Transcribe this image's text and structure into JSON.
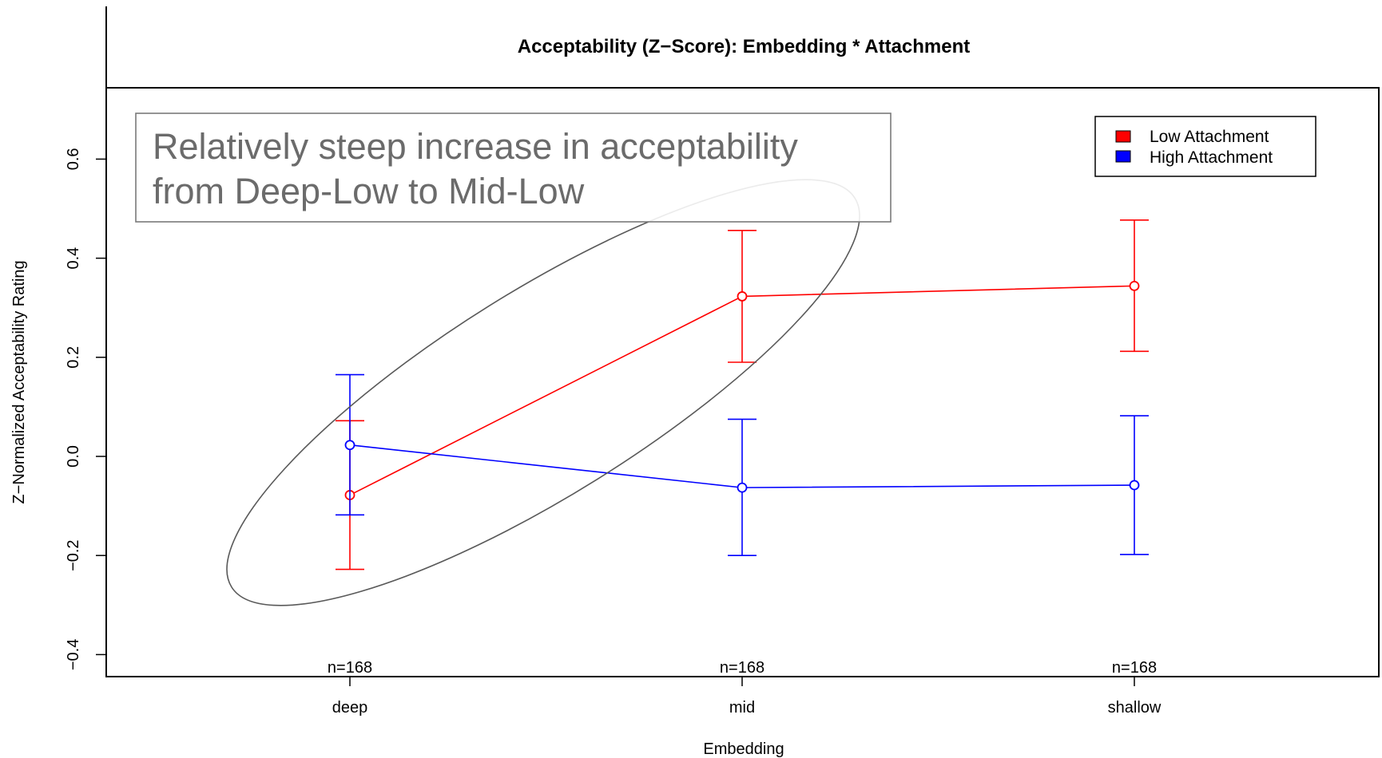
{
  "chart_data": {
    "type": "line",
    "title": "Acceptability (Z−Score): Embedding * Attachment",
    "xlabel": "Embedding",
    "ylabel": "Z−Normalized Acceptability Rating",
    "categories": [
      "deep",
      "mid",
      "shallow"
    ],
    "n_labels": [
      "n=168",
      "n=168",
      "n=168"
    ],
    "ylim": [
      -0.45,
      0.75
    ],
    "yticks": [
      -0.4,
      -0.2,
      0.0,
      0.2,
      0.4,
      0.6
    ],
    "ytick_labels": [
      "−0.4",
      "−0.2",
      "0.0",
      "0.2",
      "0.4",
      "0.6"
    ],
    "grid": false,
    "legend_position": "top-right",
    "series": [
      {
        "name": "Low Attachment",
        "color": "#ff0000",
        "values": [
          -0.078,
          0.323,
          0.344
        ],
        "lower": [
          -0.228,
          0.19,
          0.212
        ],
        "upper": [
          0.072,
          0.456,
          0.477
        ]
      },
      {
        "name": "High Attachment",
        "color": "#0000ff",
        "values": [
          0.023,
          -0.063,
          -0.058
        ],
        "lower": [
          -0.118,
          -0.2,
          -0.198
        ],
        "upper": [
          0.165,
          0.075,
          0.082
        ]
      }
    ],
    "annotation": {
      "lines": [
        "Relatively steep increase in acceptability",
        "from Deep-Low to Mid-Low"
      ]
    }
  }
}
